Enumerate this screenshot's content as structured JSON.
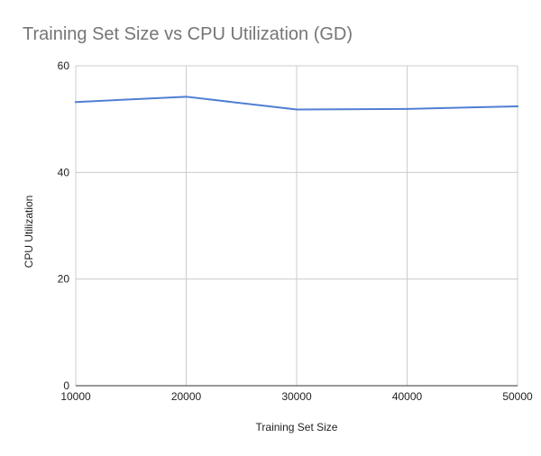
{
  "chart_data": {
    "type": "line",
    "title": "Training Set Size vs CPU Utilization (GD)",
    "xlabel": "Training Set Size",
    "ylabel": "CPU Utilization",
    "x": [
      10000,
      20000,
      30000,
      40000,
      50000
    ],
    "xlim": [
      10000,
      50000
    ],
    "ylim": [
      0,
      60
    ],
    "x_ticks": [
      "10000",
      "20000",
      "30000",
      "40000",
      "50000"
    ],
    "y_ticks": [
      "0",
      "20",
      "40",
      "60"
    ],
    "grid": true,
    "legend": "none",
    "series": [
      {
        "values": [
          53.2,
          54.2,
          51.8,
          51.9,
          52.4
        ],
        "color": "#4f7fd4"
      }
    ]
  }
}
